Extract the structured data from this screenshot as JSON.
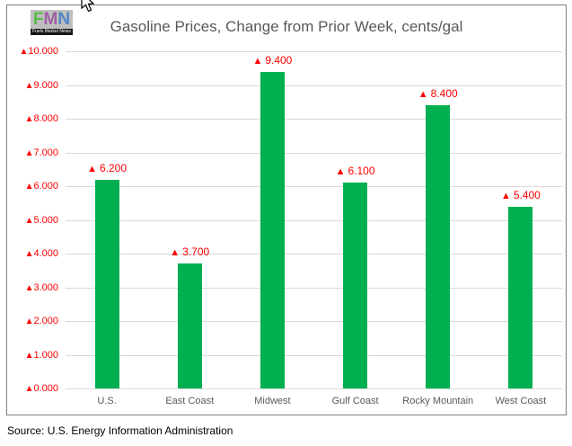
{
  "logo": {
    "letters": [
      {
        "char": "F",
        "color": "#58b947"
      },
      {
        "char": "M",
        "color": "#9d60a5"
      },
      {
        "char": "N",
        "color": "#4f86c6"
      }
    ],
    "tagline": "Fuels Market News"
  },
  "source": "Source: U.S. Energy Information Administration",
  "chart_data": {
    "type": "bar",
    "title": "Gasoline Prices, Change from Prior Week, cents/gal",
    "categories": [
      "U.S.",
      "East Coast",
      "Midwest",
      "Gulf Coast",
      "Rocky Mountain",
      "West Coast"
    ],
    "values": [
      6.2,
      3.7,
      9.4,
      6.1,
      8.4,
      5.4
    ],
    "data_labels": [
      "6.200",
      "3.700",
      "9.400",
      "6.100",
      "8.400",
      "5.400"
    ],
    "up_marker": "▲",
    "xlabel": "",
    "ylabel": "",
    "ylim": [
      0,
      10
    ],
    "ytick_step": 1,
    "ytick_labels": [
      "0.000",
      "1.000",
      "2.000",
      "3.000",
      "4.000",
      "5.000",
      "6.000",
      "7.000",
      "8.000",
      "9.000",
      "10.000"
    ],
    "grid": true,
    "legend": false,
    "colors": {
      "bar": "#00B050",
      "label": "#FF0000",
      "grid": "#D9D9D9",
      "axis_text": "#595959",
      "title_text": "#595959",
      "frame_border": "#808080"
    }
  }
}
